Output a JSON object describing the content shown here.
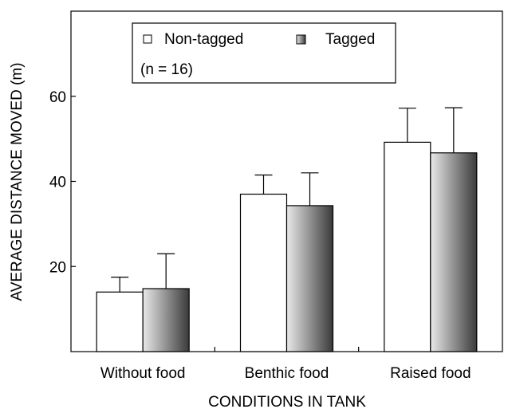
{
  "chart_data": {
    "type": "bar",
    "xlabel": "CONDITIONS IN TANK",
    "ylabel": "AVERAGE DISTANCE MOVED (m)",
    "ylim": [
      0,
      80
    ],
    "yticks": [
      20,
      40,
      60
    ],
    "categories": [
      "Without food",
      "Benthic food",
      "Raised food"
    ],
    "series": [
      {
        "name": "Non-tagged",
        "values": [
          14,
          37,
          49.2
        ],
        "error": [
          3.5,
          4.5,
          8
        ],
        "fill": "#ffffff"
      },
      {
        "name": "Tagged",
        "values": [
          14.8,
          34.3,
          46.7
        ],
        "error": [
          8.2,
          7.7,
          10.6
        ],
        "fill": "gradient"
      }
    ],
    "legend": {
      "position": "top-left",
      "note": "(n = 16)"
    },
    "grid": false,
    "error_bars": "upper"
  }
}
